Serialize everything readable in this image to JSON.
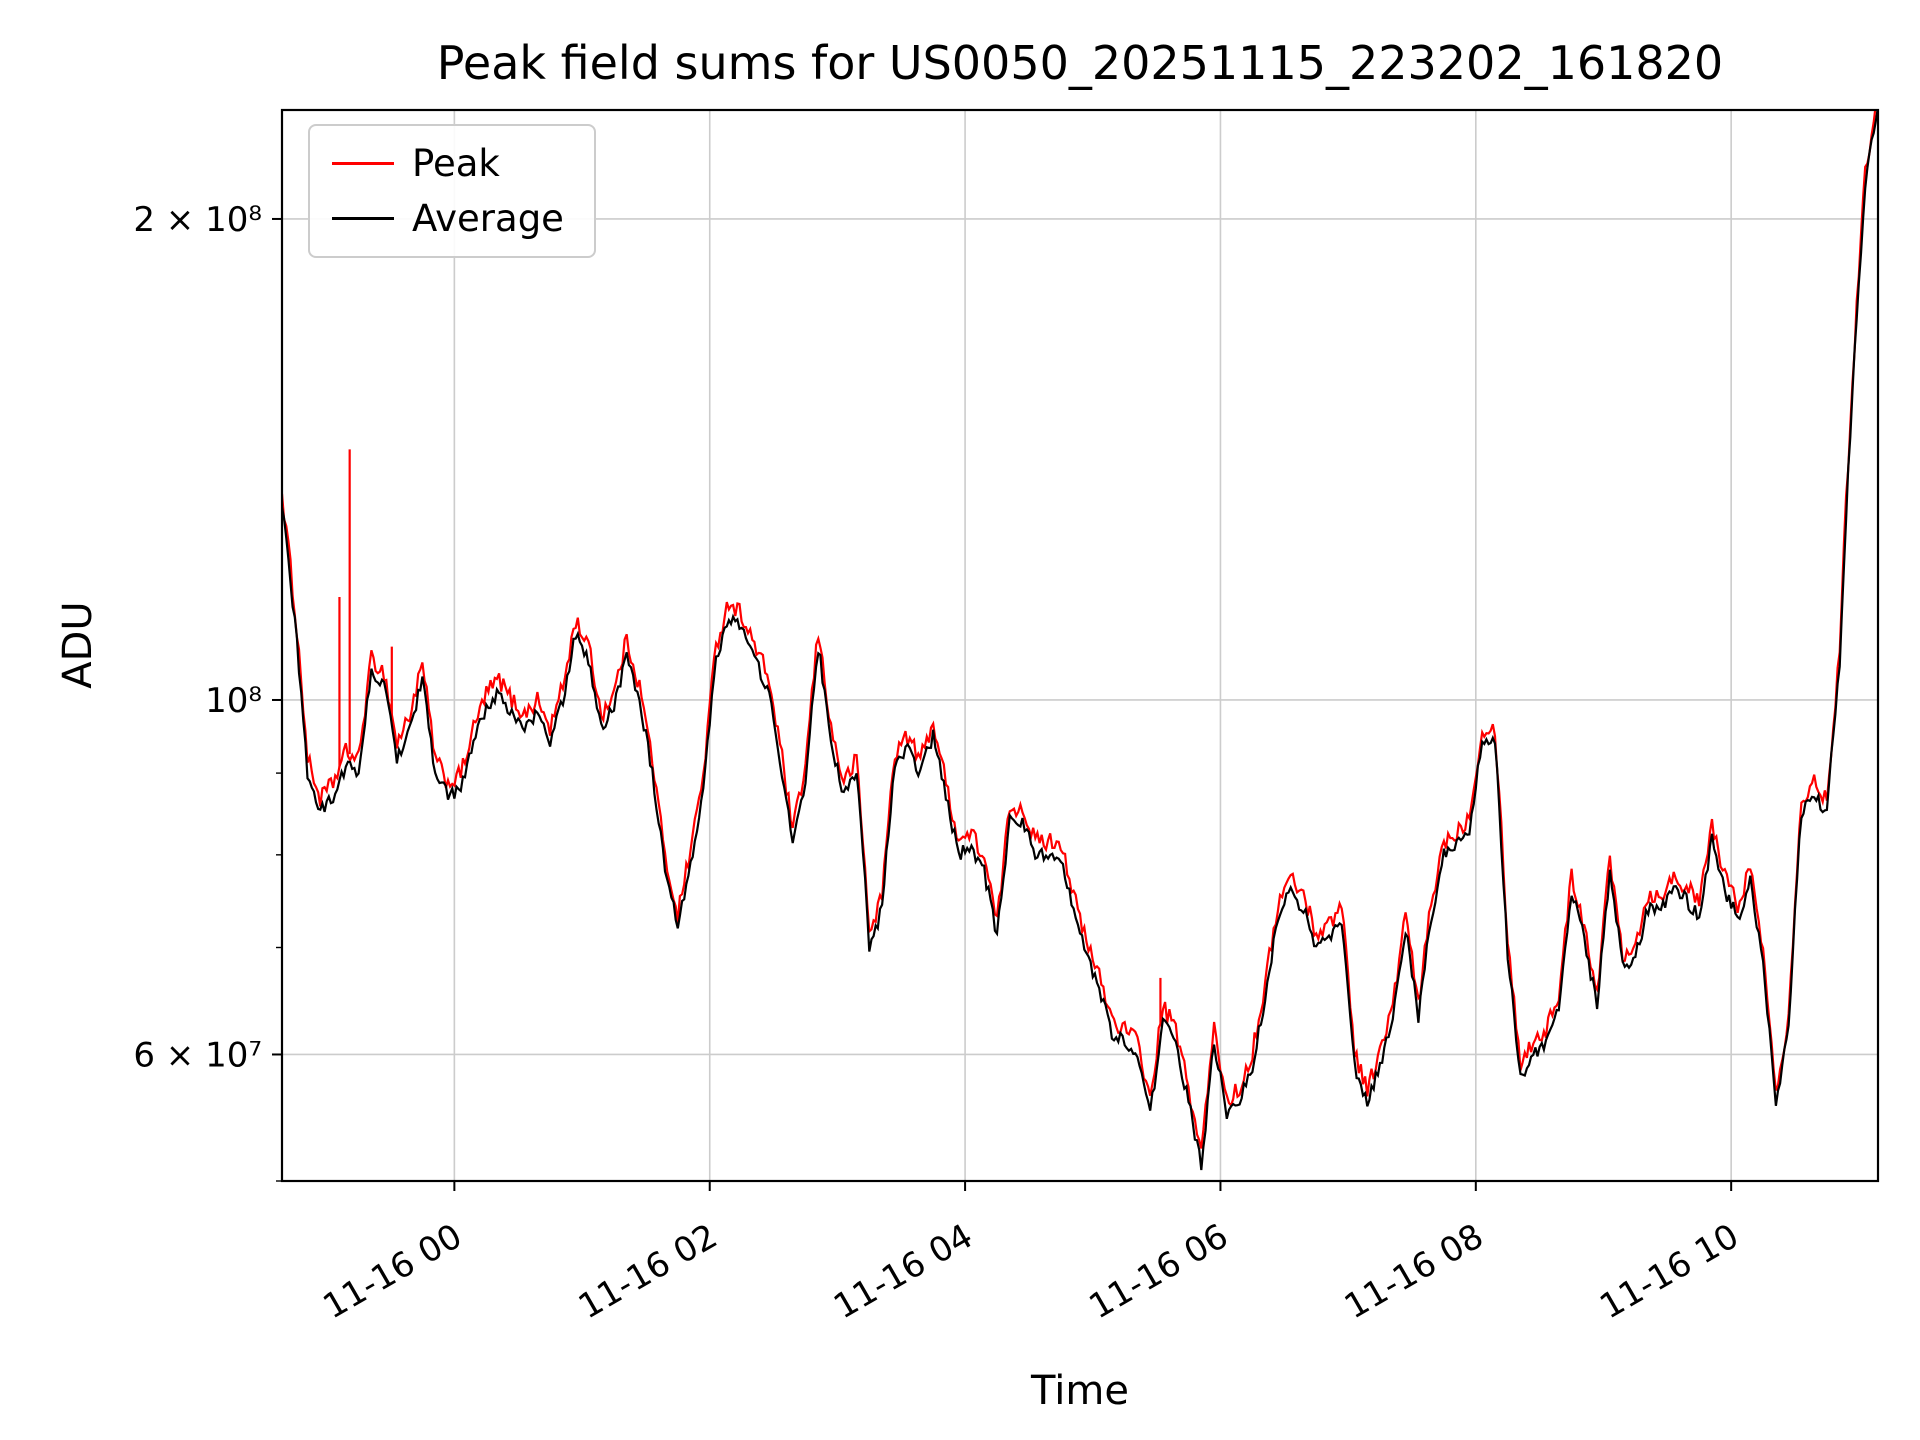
{
  "chart_data": {
    "type": "line",
    "title": "Peak field sums for US0050_20251115_223202_161820",
    "xlabel": "Time",
    "ylabel": "ADU",
    "y_scale": "log",
    "grid": true,
    "legend_position": "upper-left",
    "colors": {
      "grid": "#cccccc",
      "axes": "#000000",
      "background": "#ffffff"
    },
    "x_unit": "hours relative to 2025-11-16 00:00",
    "x_start": -1.35,
    "x_step": 0.1,
    "x_range": [
      -1.35,
      11.15
    ],
    "y_range": [
      50000000,
      234000000
    ],
    "value_unit_adu": 10000000,
    "x_ticks": [
      {
        "h": 0,
        "label": "11-16 00"
      },
      {
        "h": 2,
        "label": "11-16 02"
      },
      {
        "h": 4,
        "label": "11-16 04"
      },
      {
        "h": 6,
        "label": "11-16 06"
      },
      {
        "h": 8,
        "label": "11-16 08"
      },
      {
        "h": 10,
        "label": "11-16 10"
      }
    ],
    "y_ticks": [
      {
        "v": 200000000,
        "label": "2 × 10⁸"
      },
      {
        "v": 100000000,
        "label": "10⁸"
      },
      {
        "v": 60000000,
        "label": "6 × 10⁷"
      }
    ],
    "y_minor_ticks": [
      50000000,
      70000000,
      80000000,
      90000000
    ],
    "series": [
      {
        "name": "Peak",
        "color": "#ff0000",
        "noise": 0.013,
        "values": [
          13.46,
          11.42,
          9.18,
          8.67,
          8.87,
          9.28,
          9.18,
          10.61,
          10.4,
          9.38,
          9.79,
          10.51,
          9.18,
          8.87,
          8.98,
          9.59,
          10.1,
          10.3,
          10.0,
          9.79,
          10.0,
          9.59,
          10.2,
          11.22,
          10.81,
          9.79,
          10.1,
          10.91,
          10.2,
          9.18,
          7.96,
          7.34,
          8.06,
          8.98,
          10.81,
          11.53,
          11.32,
          10.81,
          10.4,
          9.38,
          8.26,
          9.08,
          11.02,
          9.59,
          8.87,
          9.18,
          7.14,
          7.55,
          9.28,
          9.49,
          9.18,
          9.69,
          8.87,
          8.16,
          8.26,
          7.96,
          7.24,
          8.57,
          8.57,
          8.16,
          8.16,
          8.16,
          7.55,
          7.04,
          6.73,
          6.32,
          6.22,
          6.12,
          5.61,
          6.43,
          6.22,
          5.71,
          5.2,
          6.22,
          5.61,
          5.71,
          6.02,
          6.63,
          7.45,
          7.75,
          7.55,
          7.14,
          7.24,
          7.45,
          6.02,
          5.71,
          6.02,
          6.43,
          7.34,
          6.43,
          7.45,
          8.16,
          8.26,
          8.47,
          9.59,
          9.59,
          7.04,
          5.92,
          6.12,
          6.22,
          6.53,
          7.75,
          7.24,
          6.53,
          7.96,
          6.94,
          7.04,
          7.55,
          7.55,
          7.75,
          7.65,
          7.45,
          8.36,
          7.75,
          7.45,
          7.85,
          6.94,
          5.71,
          6.32,
          8.67,
          8.87,
          8.67,
          10.71,
          15.81,
          21.42,
          23.97
        ],
        "spikes": [
          [
            -0.9,
            11.6
          ],
          [
            -0.82,
            14.35
          ],
          [
            -0.49,
            10.8
          ],
          [
            5.53,
            6.7
          ]
        ]
      },
      {
        "name": "Average",
        "color": "#000000",
        "noise": 0.01,
        "values": [
          13.2,
          11.2,
          9.0,
          8.5,
          8.7,
          9.1,
          9.0,
          10.4,
          10.2,
          9.2,
          9.6,
          10.3,
          9.0,
          8.7,
          8.8,
          9.4,
          9.9,
          10.1,
          9.8,
          9.6,
          9.8,
          9.4,
          10.0,
          11.0,
          10.6,
          9.6,
          9.9,
          10.7,
          10.0,
          9.0,
          7.8,
          7.2,
          7.9,
          8.8,
          10.6,
          11.3,
          11.1,
          10.6,
          10.2,
          9.2,
          8.1,
          8.9,
          10.8,
          9.4,
          8.7,
          9.0,
          7.0,
          7.4,
          9.1,
          9.3,
          9.0,
          9.5,
          8.7,
          8.0,
          8.1,
          7.8,
          7.1,
          8.4,
          8.4,
          8.0,
          8.0,
          8.0,
          7.4,
          6.9,
          6.6,
          6.2,
          6.1,
          6.0,
          5.5,
          6.3,
          6.1,
          5.6,
          5.1,
          6.1,
          5.5,
          5.6,
          5.9,
          6.5,
          7.3,
          7.6,
          7.4,
          7.0,
          7.1,
          7.3,
          5.9,
          5.6,
          5.9,
          6.3,
          7.2,
          6.3,
          7.3,
          8.0,
          8.1,
          8.3,
          9.4,
          9.4,
          6.9,
          5.8,
          6.0,
          6.1,
          6.4,
          7.6,
          7.1,
          6.4,
          7.8,
          6.8,
          6.9,
          7.4,
          7.4,
          7.6,
          7.5,
          7.3,
          8.2,
          7.6,
          7.3,
          7.7,
          6.8,
          5.6,
          6.2,
          8.5,
          8.7,
          8.5,
          10.5,
          15.5,
          21.0,
          23.5
        ]
      }
    ]
  }
}
